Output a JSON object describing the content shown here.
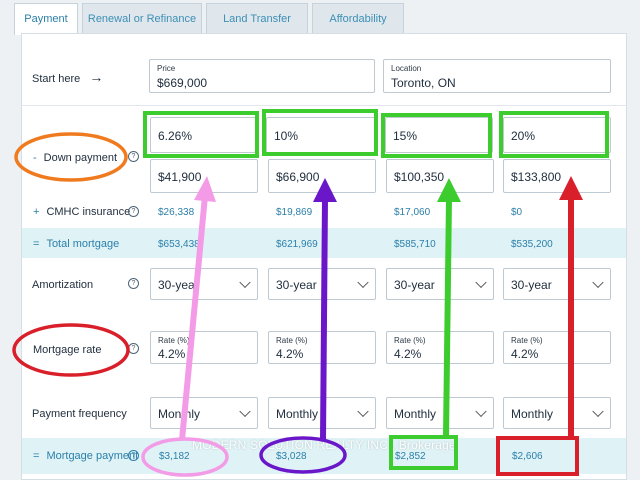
{
  "tabs": [
    {
      "label": "Payment",
      "active": true
    },
    {
      "label": "Renewal or Refinance",
      "active": false
    },
    {
      "label": "Land Transfer",
      "active": false
    },
    {
      "label": "Affordability",
      "active": false
    }
  ],
  "start": {
    "label": "Start here",
    "arrow": "→"
  },
  "price": {
    "label": "Price",
    "value": "$669,000"
  },
  "location": {
    "label": "Location",
    "value": "Toronto, ON"
  },
  "down_payment": {
    "label": "Down payment",
    "prefix": "-",
    "percents": [
      "6.26%",
      "10%",
      "15%",
      "20%"
    ],
    "amounts": [
      "$41,900",
      "$66,900",
      "$100,350",
      "$133,800"
    ]
  },
  "cmhc": {
    "prefix": "+",
    "label": "CMHC insurance",
    "values": [
      "$26,338",
      "$19,869",
      "$17,060",
      "$0"
    ]
  },
  "total_mortgage": {
    "prefix": "=",
    "label": "Total mortgage",
    "values": [
      "$653,438",
      "$621,969",
      "$585,710",
      "$535,200"
    ]
  },
  "amortization": {
    "label": "Amortization",
    "values": [
      "30-year",
      "30-year",
      "30-year",
      "30-year"
    ]
  },
  "mortgage_rate": {
    "label": "Mortgage rate",
    "rate_label": "Rate (%)",
    "values": [
      "4.2%",
      "4.2%",
      "4.2%",
      "4.2%"
    ]
  },
  "payment_frequency": {
    "label": "Payment frequency",
    "values": [
      "Monthly",
      "Monthly",
      "Monthly",
      "Monthly"
    ]
  },
  "mortgage_payment": {
    "prefix": "=",
    "label": "Mortgage payment",
    "values": [
      "$3,182",
      "$3,028",
      "$2,852",
      "$2,606"
    ]
  },
  "help_glyph": "?",
  "watermark": "MODERN SOLUTION REALTY INC., Brokerage",
  "annotation_colors": {
    "green": "#3dcc2e",
    "orange": "#f07a1e",
    "red": "#d9202a",
    "pink": "#f39be6",
    "purple": "#6a17c9"
  }
}
